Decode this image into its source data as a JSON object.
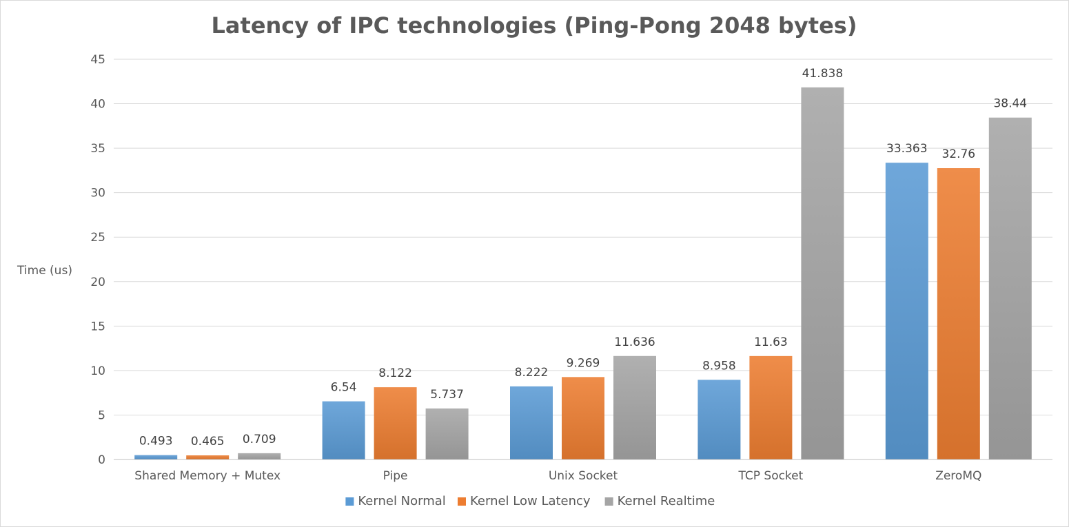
{
  "chart_data": {
    "type": "bar",
    "title": "Latency of IPC technologies (Ping-Pong 2048 bytes)",
    "xlabel": "",
    "ylabel": "Time (us)",
    "ylim": [
      0,
      45
    ],
    "yticks": [
      0,
      5,
      10,
      15,
      20,
      25,
      30,
      35,
      40,
      45
    ],
    "grid": true,
    "legend_position": "bottom",
    "categories": [
      "Shared Memory + Mutex",
      "Pipe",
      "Unix Socket",
      "TCP Socket",
      "ZeroMQ"
    ],
    "series": [
      {
        "name": "Kernel Normal",
        "color": "#5b9bd5",
        "values": [
          0.493,
          6.54,
          8.222,
          8.958,
          33.363
        ],
        "labels": [
          "0.493",
          "6.54",
          "8.222",
          "8.958",
          "33.363"
        ]
      },
      {
        "name": "Kernel Low Latency",
        "color": "#ed7d31",
        "values": [
          0.465,
          8.122,
          9.269,
          11.63,
          32.76
        ],
        "labels": [
          "0.465",
          "8.122",
          "9.269",
          "11.63",
          "32.76"
        ]
      },
      {
        "name": "Kernel Realtime",
        "color": "#a5a5a5",
        "values": [
          0.709,
          5.737,
          11.636,
          41.838,
          38.44
        ],
        "labels": [
          "0.709",
          "5.737",
          "11.636",
          "41.838",
          "38.44"
        ]
      }
    ]
  }
}
